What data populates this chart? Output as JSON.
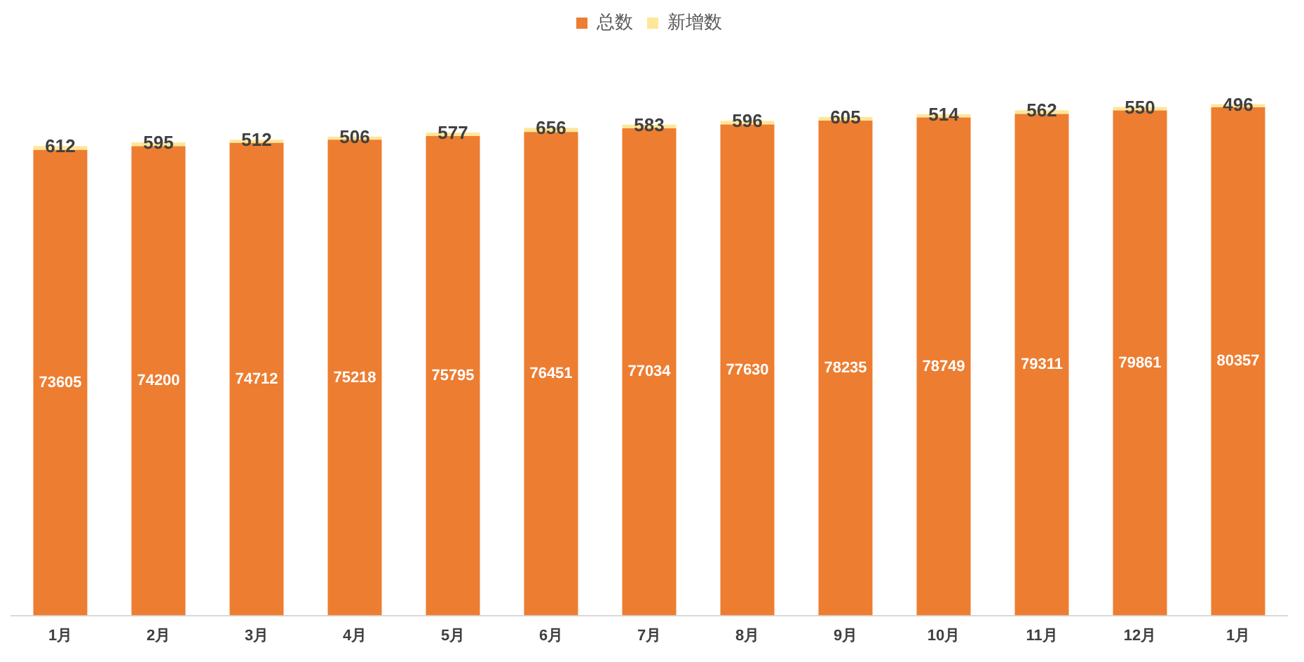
{
  "chart_data": {
    "type": "bar",
    "stacked": true,
    "categories": [
      "1月",
      "2月",
      "3月",
      "4月",
      "5月",
      "6月",
      "7月",
      "8月",
      "9月",
      "10月",
      "11月",
      "12月",
      "1月"
    ],
    "series": [
      {
        "name": "总数",
        "color": "#ed7d31",
        "values": [
          73605,
          74200,
          74712,
          75218,
          75795,
          76451,
          77034,
          77630,
          78235,
          78749,
          79311,
          79861,
          80357
        ]
      },
      {
        "name": "新增数",
        "color": "#ffe699",
        "values": [
          612,
          595,
          512,
          506,
          577,
          656,
          583,
          596,
          605,
          514,
          562,
          550,
          496
        ]
      }
    ],
    "tick_labels": "x",
    "grid": false,
    "legend": "top",
    "data_labels": true
  }
}
